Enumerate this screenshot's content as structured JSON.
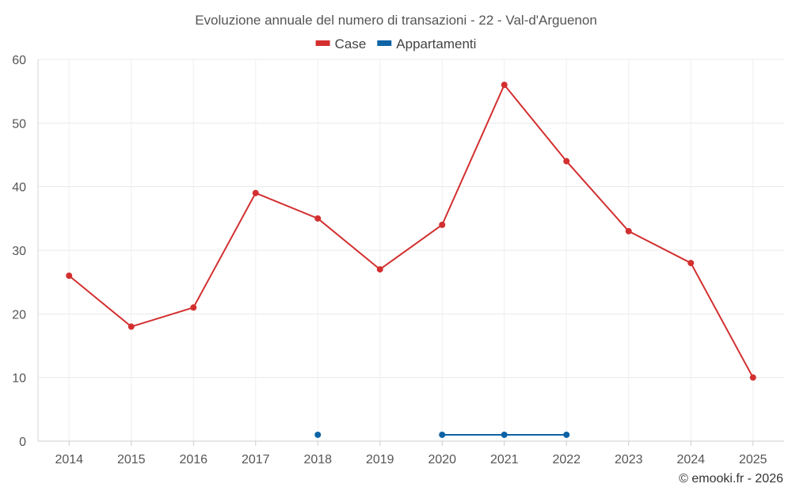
{
  "chart_data": {
    "type": "line",
    "title": "Evoluzione annuale del numero di transazioni - 22 - Val-d'Arguenon",
    "categories": [
      "2014",
      "2015",
      "2016",
      "2017",
      "2018",
      "2019",
      "2020",
      "2021",
      "2022",
      "2023",
      "2024",
      "2025"
    ],
    "ylim": [
      0,
      60
    ],
    "yticks": [
      0,
      10,
      20,
      30,
      40,
      50,
      60
    ],
    "grid": true,
    "legend_position": "top-center",
    "series": [
      {
        "name": "Case",
        "color": "#d32f2f",
        "values": [
          26,
          18,
          21,
          39,
          35,
          27,
          34,
          56,
          44,
          33,
          28,
          10
        ]
      },
      {
        "name": "Appartamenti",
        "color": "#0d63a5",
        "values": [
          null,
          null,
          null,
          null,
          1,
          null,
          1,
          1,
          1,
          null,
          null,
          null
        ]
      }
    ]
  },
  "credit": "© emooki.fr - 2026"
}
